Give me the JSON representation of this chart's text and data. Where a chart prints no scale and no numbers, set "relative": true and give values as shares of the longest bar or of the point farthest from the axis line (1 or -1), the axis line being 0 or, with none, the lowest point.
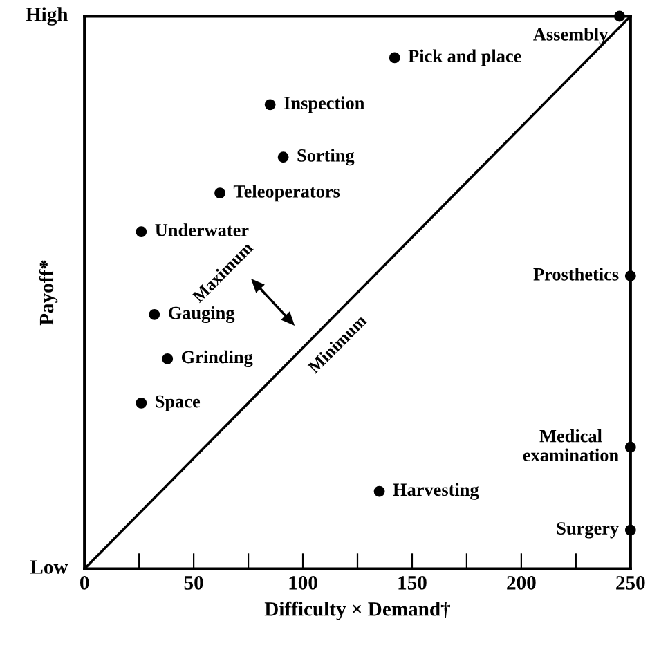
{
  "chart_data": {
    "type": "scatter",
    "xlabel": "Difficulty × Demand†",
    "ylabel": "Payoff*",
    "xlim": [
      0,
      250
    ],
    "xticks": [
      0,
      {
        "value": 25,
        "label": null
      },
      50,
      {
        "value": 75,
        "label": null
      },
      100,
      {
        "value": 125,
        "label": null
      },
      150,
      {
        "value": 175,
        "label": null
      },
      200,
      {
        "value": 225,
        "label": null
      },
      250
    ],
    "relative": true,
    "grid": false,
    "marker": "circle",
    "series": [
      {
        "type": "line",
        "marker": "none",
        "color": "#000000",
        "x": [
          0,
          250
        ],
        "values": [
          0,
          1
        ]
      },
      {
        "name": "Assembly",
        "color": "#000000",
        "x": [
          245
        ],
        "values": [
          1.0
        ]
      },
      {
        "name": "Pick and place",
        "color": "#000000",
        "x": [
          142
        ],
        "values": [
          0.925
        ]
      },
      {
        "name": "Inspection",
        "color": "#000000",
        "x": [
          85
        ],
        "values": [
          0.84
        ]
      },
      {
        "name": "Sorting",
        "color": "#000000",
        "x": [
          91
        ],
        "values": [
          0.745
        ]
      },
      {
        "name": "Teleoperators",
        "color": "#000000",
        "x": [
          62
        ],
        "values": [
          0.68
        ]
      },
      {
        "name": "Underwater",
        "color": "#000000",
        "x": [
          26
        ],
        "values": [
          0.61
        ]
      },
      {
        "name": "Gauging",
        "color": "#000000",
        "x": [
          32
        ],
        "values": [
          0.46
        ]
      },
      {
        "name": "Grinding",
        "color": "#000000",
        "x": [
          38
        ],
        "values": [
          0.38
        ]
      },
      {
        "name": "Space",
        "color": "#000000",
        "x": [
          26
        ],
        "values": [
          0.3
        ]
      },
      {
        "name": "Harvesting",
        "color": "#000000",
        "x": [
          135
        ],
        "values": [
          0.14
        ]
      },
      {
        "name": "Prosthetics",
        "color": "#000000",
        "x": [
          250
        ],
        "values": [
          0.53
        ]
      },
      {
        "name": "Medical\nexamination",
        "color": "#000000",
        "x": [
          250
        ],
        "values": [
          0.22
        ]
      },
      {
        "name": "Surgery",
        "color": "#000000",
        "x": [
          250
        ],
        "values": [
          0.07
        ]
      }
    ],
    "annotations": [
      "Low",
      "High",
      "Maximum",
      "Minimum"
    ]
  }
}
